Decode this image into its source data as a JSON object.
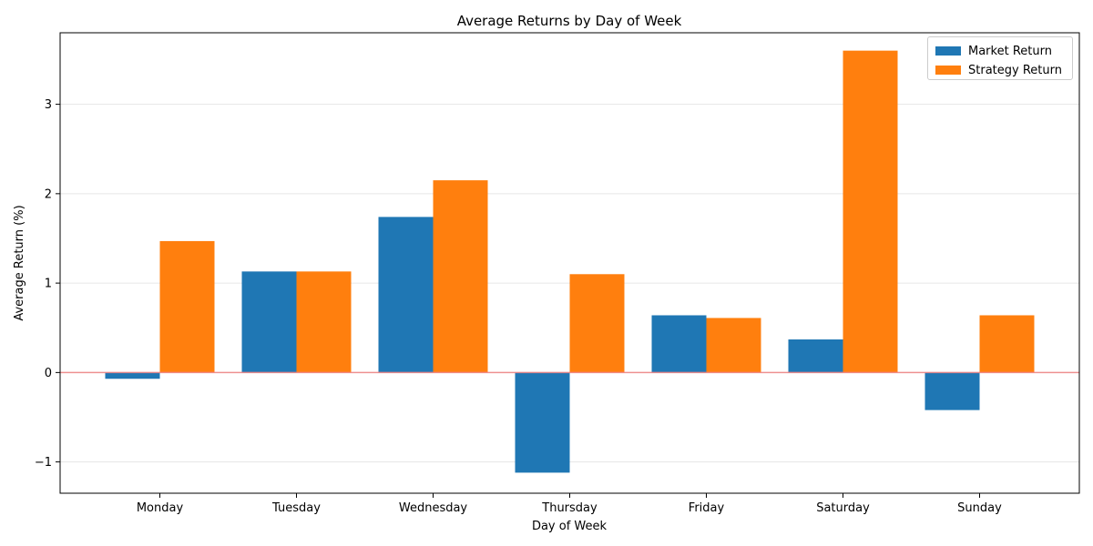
{
  "chart_data": {
    "type": "bar",
    "title": "Average Returns by Day of Week",
    "xlabel": "Day of Week",
    "ylabel": "Average Return (%)",
    "categories": [
      "Monday",
      "Tuesday",
      "Wednesday",
      "Thursday",
      "Friday",
      "Saturday",
      "Sunday"
    ],
    "series": [
      {
        "name": "Market Return",
        "color": "#1f77b4",
        "values": [
          -0.07,
          1.13,
          1.74,
          -1.12,
          0.64,
          0.37,
          -0.42
        ]
      },
      {
        "name": "Strategy Return",
        "color": "#ff7f0e",
        "values": [
          1.47,
          1.13,
          2.15,
          1.1,
          0.61,
          3.6,
          0.64
        ]
      }
    ],
    "ylim": [
      -1.35,
      3.8
    ],
    "yticks": [
      -1,
      0,
      1,
      2,
      3
    ],
    "ytick_labels": [
      "−1",
      "0",
      "1",
      "2",
      "3"
    ],
    "grid": "y",
    "legend_position": "top-right",
    "reference_line": {
      "y": 0,
      "color": "#f08080"
    }
  }
}
